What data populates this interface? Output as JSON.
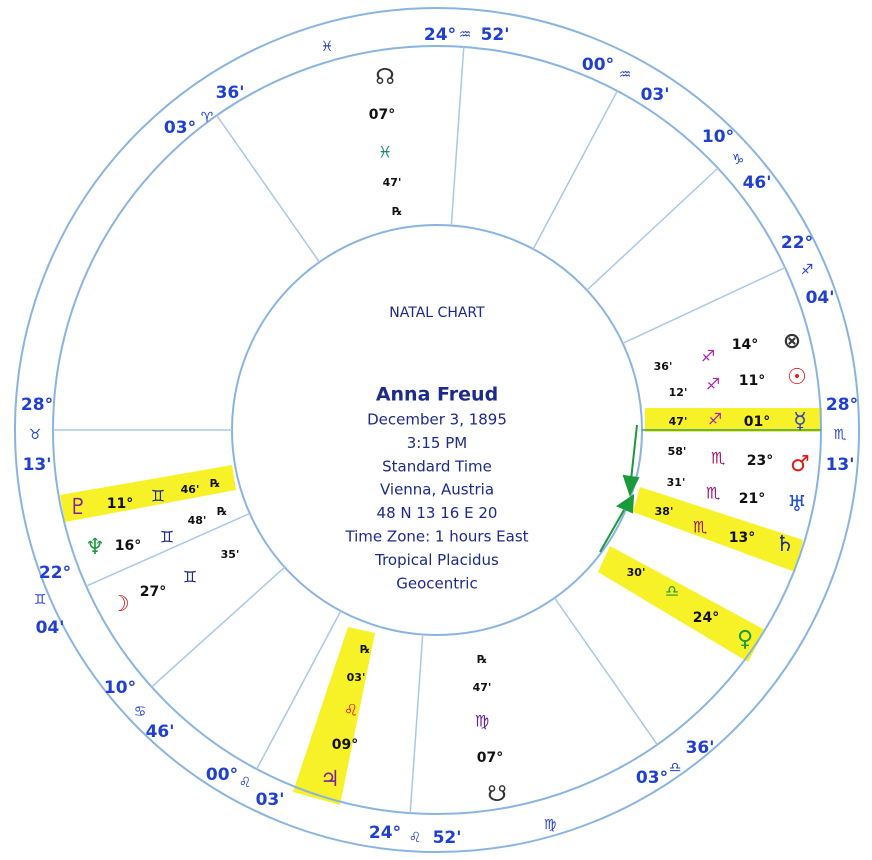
{
  "center": {
    "title": "NATAL CHART",
    "name": "Anna Freud",
    "lines": [
      "December 3, 1895",
      "3:15 PM",
      "Standard Time",
      "Vienna, Austria",
      "48 N 13     16 E 20",
      "Time Zone: 1 hours East",
      "Tropical Placidus",
      "Geocentric"
    ]
  },
  "cusps": [
    {
      "deg": "28°",
      "sign": "♉",
      "min": "13'"
    },
    {
      "deg": "22°",
      "sign": "♊",
      "min": "04'"
    },
    {
      "deg": "10°",
      "sign": "♋",
      "min": "46'"
    },
    {
      "deg": "00°",
      "sign": "♌",
      "min": "03'"
    },
    {
      "deg": "24°",
      "sign": "♌",
      "min": "52'"
    },
    {
      "deg": "03°",
      "sign": "♎",
      "min": "36'"
    },
    {
      "deg": "28°",
      "sign": "♏",
      "min": "13'"
    },
    {
      "deg": "22°",
      "sign": "♐",
      "min": "04'"
    },
    {
      "deg": "10°",
      "sign": "♑",
      "min": "46'"
    },
    {
      "deg": "00°",
      "sign": "♒",
      "min": "03'"
    },
    {
      "deg": "24°",
      "sign": "♒",
      "min": "52'"
    },
    {
      "deg": "03°",
      "sign": "♈",
      "min": "36'"
    }
  ],
  "intercepted": [
    "♓",
    "♍"
  ],
  "planets": [
    {
      "glyph": "⊗",
      "deg": "14°",
      "sign": "♐",
      "min": "36'"
    },
    {
      "glyph": "☉",
      "deg": "11°",
      "sign": "♐",
      "min": "12'"
    },
    {
      "glyph": "☿",
      "deg": "01°",
      "sign": "♐",
      "min": "47'"
    },
    {
      "glyph": "♂",
      "deg": "23°",
      "sign": "♏",
      "min": "58'"
    },
    {
      "glyph": "♅",
      "deg": "21°",
      "sign": "♏",
      "min": "31'"
    },
    {
      "glyph": "♄",
      "deg": "13°",
      "sign": "♏",
      "min": "38'"
    },
    {
      "glyph": "♀",
      "deg": "24°",
      "sign": "♎",
      "min": "30'"
    },
    {
      "glyph": "♃",
      "deg": "09°",
      "sign": "♌",
      "min": "03'",
      "retro": "℞"
    },
    {
      "glyph": "☋",
      "deg": "07°",
      "sign": "♍",
      "min": "47'",
      "retro": "℞"
    },
    {
      "glyph": "☊",
      "deg": "07°",
      "sign": "♓",
      "min": "47'",
      "retro": "℞"
    },
    {
      "glyph": "♇",
      "deg": "11°",
      "sign": "♊",
      "min": "46'",
      "retro": "℞"
    },
    {
      "glyph": "♆",
      "deg": "16°",
      "sign": "♊",
      "min": "48'",
      "retro": "℞"
    },
    {
      "glyph": "☽",
      "deg": "27°",
      "sign": "♊",
      "min": "35'"
    }
  ]
}
